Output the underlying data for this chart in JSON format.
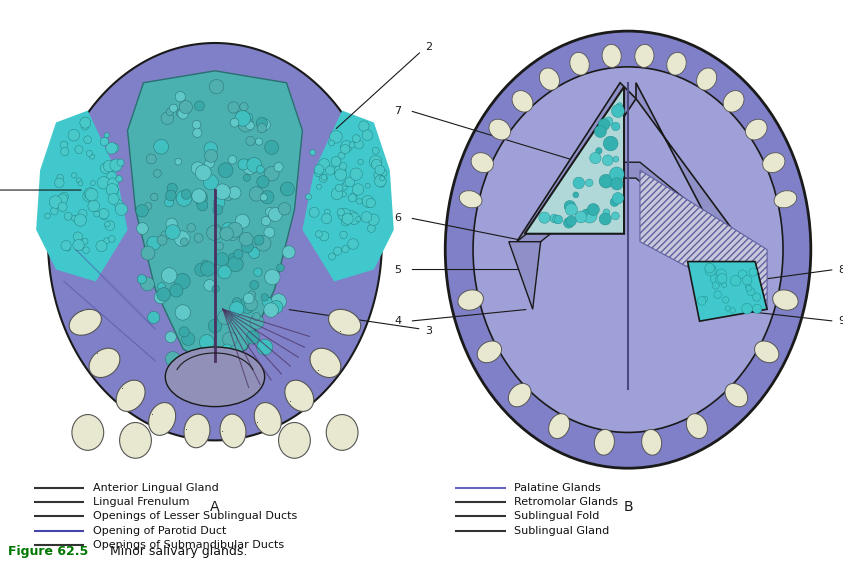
{
  "figure_label": "Figure 62.5",
  "figure_caption": "Minor salivary glands.",
  "legend_left": [
    "Anterior Lingual Gland",
    "Lingual Frenulum",
    "Openings of Lesser Sublingual Ducts",
    "Opening of Parotid Duct",
    "Openings of Submandibular Ducts"
  ],
  "legend_right": [
    "Palatine Glands",
    "Retromolar Glands",
    "Sublingual Fold",
    "Sublingual Gland"
  ],
  "bg_color": "#ffffff",
  "purple_outer": "#8080c8",
  "purple_inner": "#9898d8",
  "purple_dark": "#6060a0",
  "cyan_bright": "#40c8cc",
  "cyan_mid": "#50b8bc",
  "black": "#1a1a1a",
  "dark_gray": "#333333",
  "tooth_fill": "#e8e8d0",
  "tooth_edge": "#555555",
  "parotid_line": "#4444aa",
  "fig_label_color": "#007700",
  "label_line_color": "#333333"
}
